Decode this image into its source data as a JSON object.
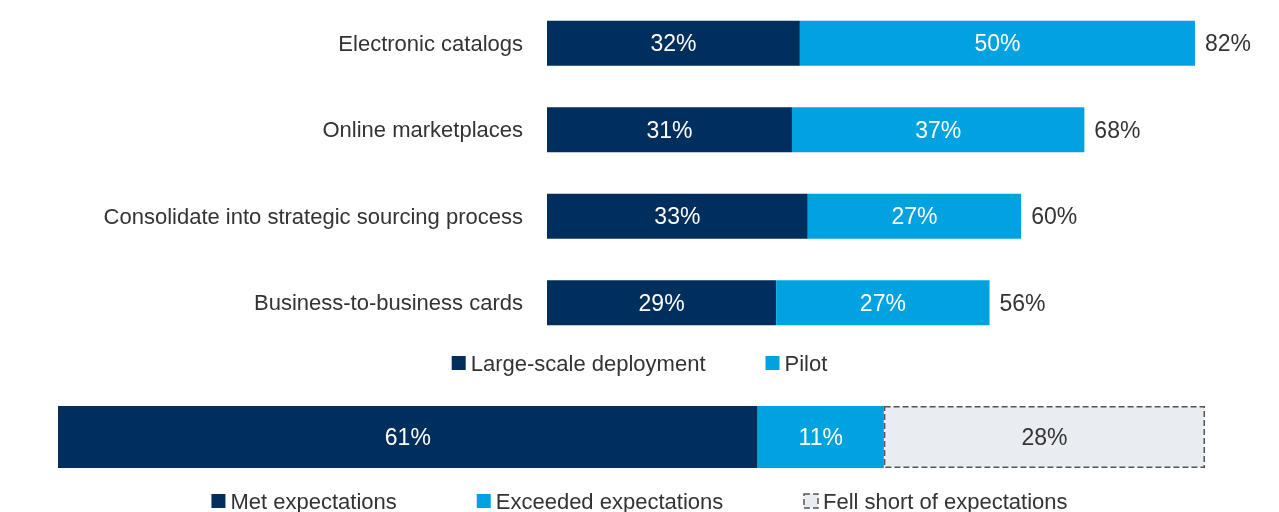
{
  "chart_data": [
    {
      "type": "bar",
      "orientation": "horizontal",
      "stacked": true,
      "legend": "bottom",
      "categories": [
        "Electronic catalogs",
        "Online marketplaces",
        "Consolidate into strategic sourcing process",
        "Business-to-business cards"
      ],
      "series": [
        {
          "name": "Large-scale deployment",
          "color": "#002e5d",
          "values": [
            32,
            31,
            33,
            29
          ],
          "value_labels": [
            "32%",
            "31%",
            "33%",
            "29%"
          ]
        },
        {
          "name": "Pilot",
          "color": "#00a3e0",
          "values": [
            50,
            37,
            27,
            27
          ],
          "value_labels": [
            "50%",
            "37%",
            "27%",
            "27%"
          ]
        }
      ],
      "totals": [
        "82%",
        "68%",
        "60%",
        "56%"
      ]
    },
    {
      "type": "bar",
      "orientation": "horizontal",
      "stacked": true,
      "legend": "bottom",
      "categories": [
        null
      ],
      "series": [
        {
          "name": "Met expectations",
          "color": "#002e5d",
          "values": [
            61
          ],
          "value_labels": [
            "61%"
          ]
        },
        {
          "name": "Exceeded expectations",
          "color": "#00a3e0",
          "values": [
            11
          ],
          "value_labels": [
            "11%"
          ]
        },
        {
          "name": "Fell short of expectations",
          "color": "#e9ecf0",
          "values": [
            28
          ],
          "value_labels": [
            "28%"
          ],
          "line_style": "dashed"
        }
      ]
    }
  ]
}
